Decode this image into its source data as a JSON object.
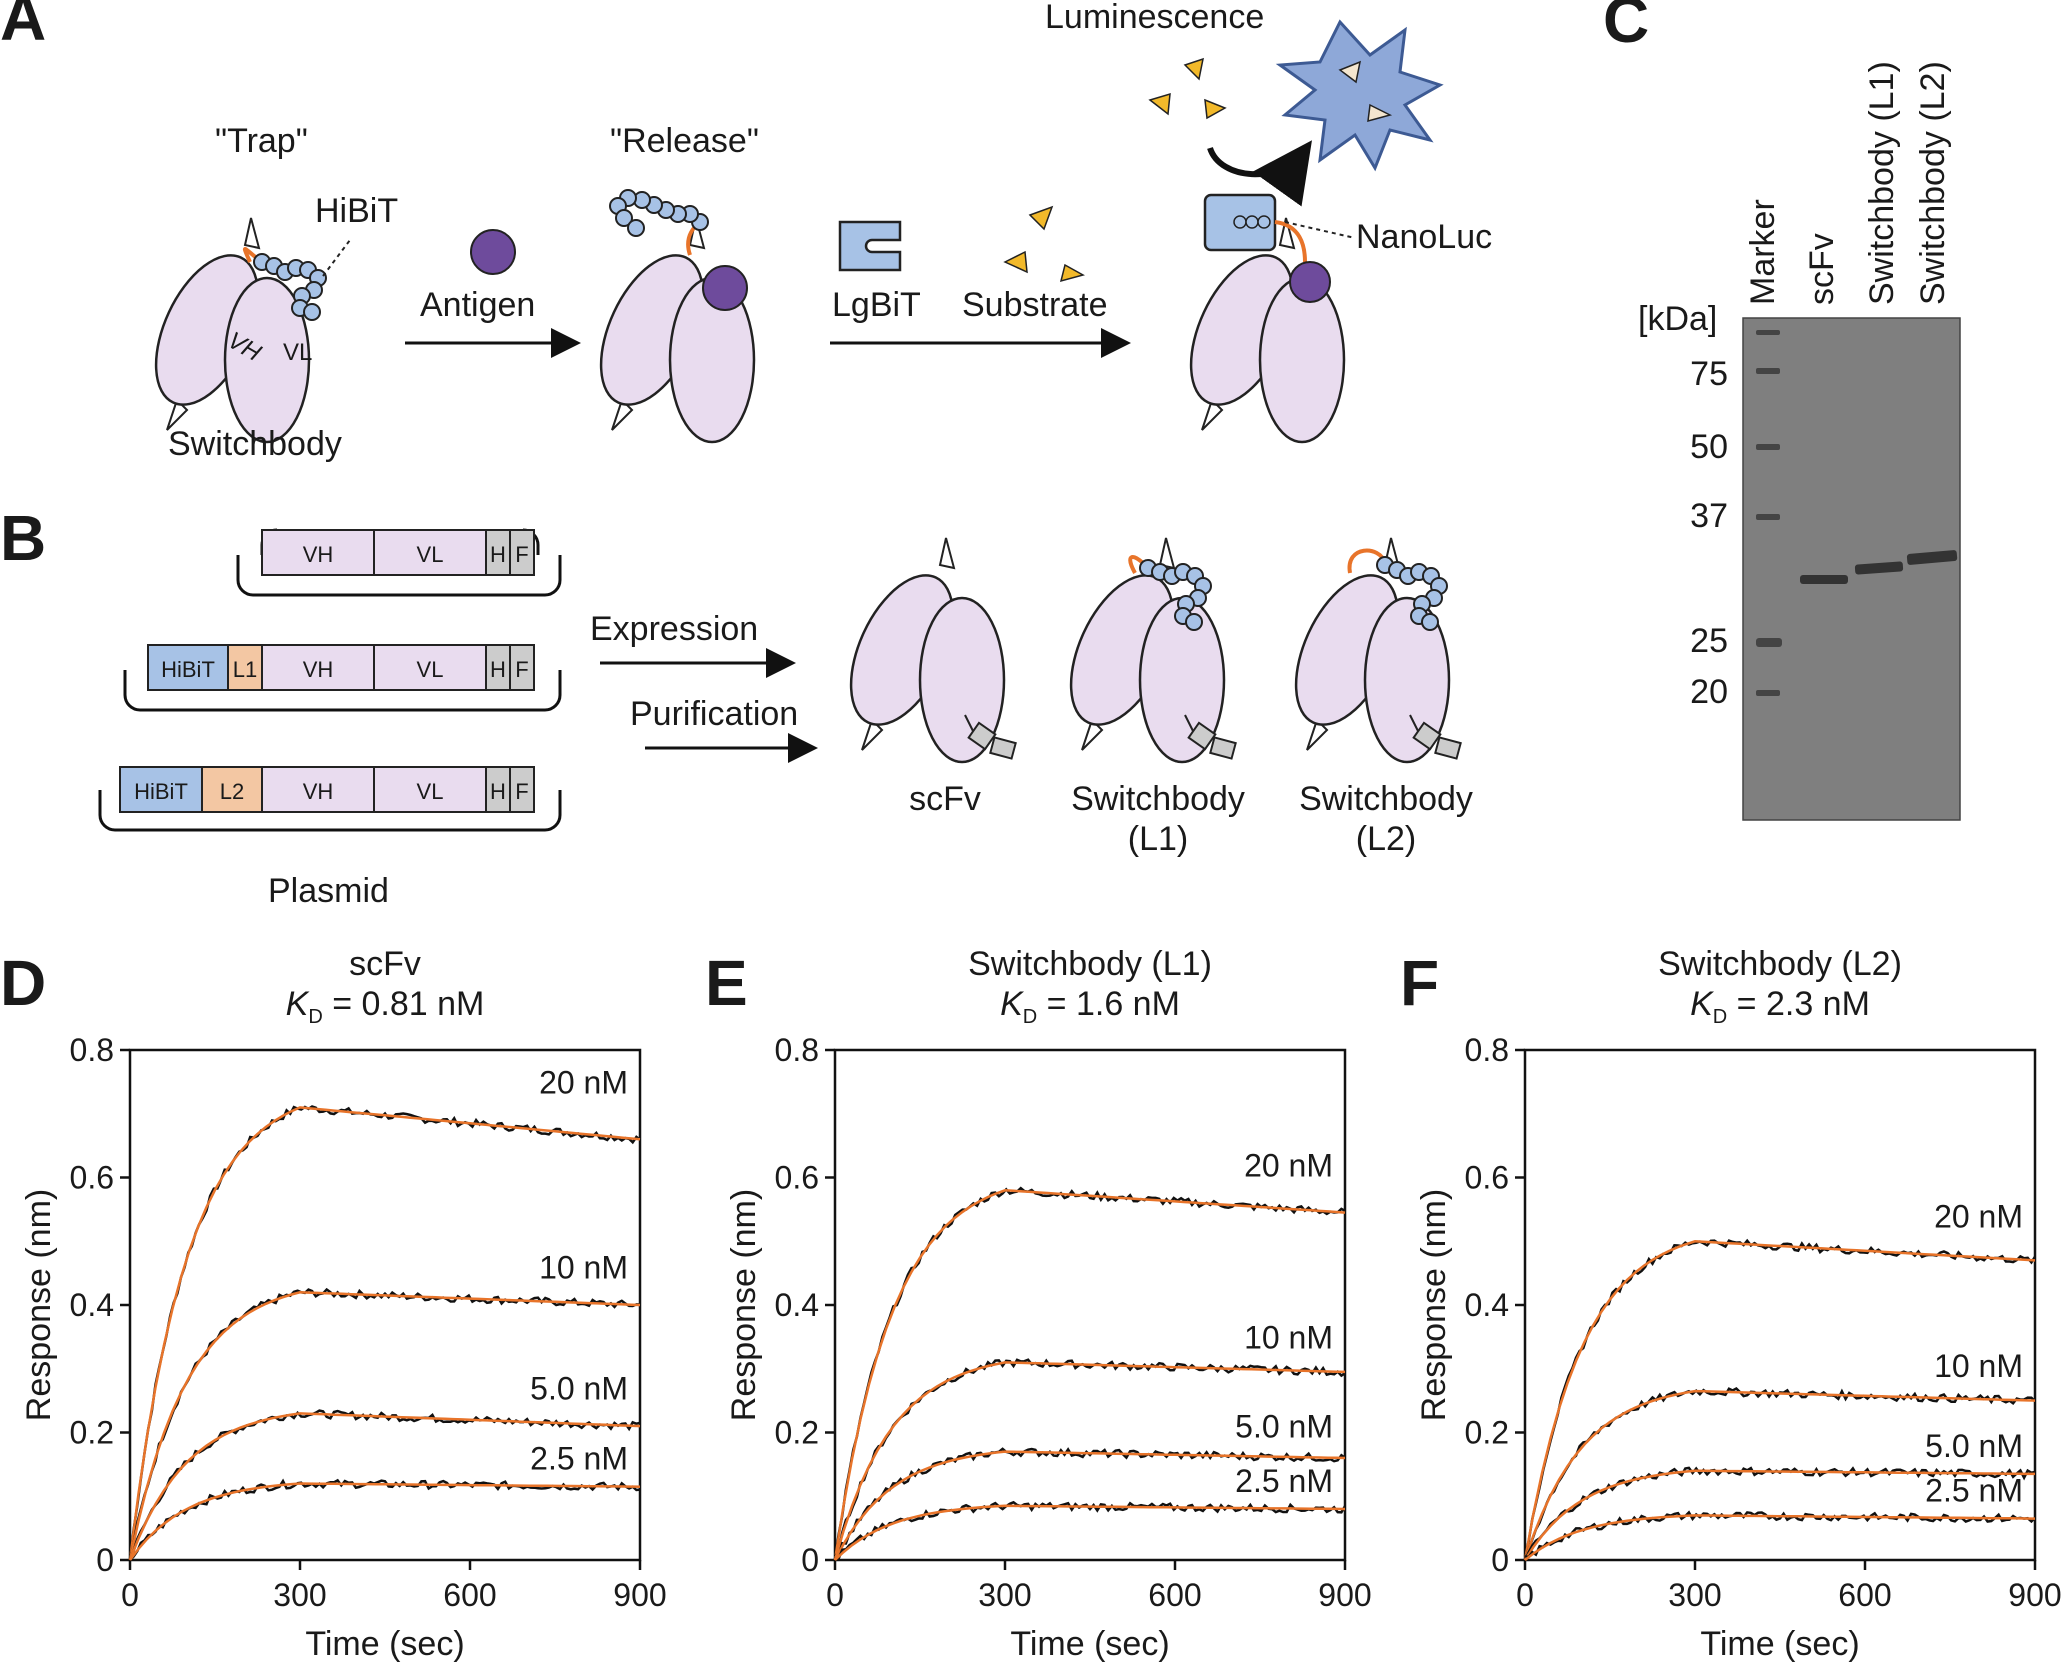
{
  "panel_letters": [
    "A",
    "B",
    "C",
    "D",
    "E",
    "F"
  ],
  "panel_a": {
    "trap": "\"Trap\"",
    "release": "\"Release\"",
    "hibit": "HiBiT",
    "vh": "VH",
    "vl": "VL",
    "switchbody": "Switchbody",
    "antigen": "Antigen",
    "lgbit": "LgBiT",
    "substrate": "Substrate",
    "luminescence": "Luminescence",
    "nanoluc": "NanoLuc"
  },
  "panel_b": {
    "constructs": [
      {
        "segments": [
          "VH",
          "VL",
          "H",
          "F"
        ]
      },
      {
        "segments": [
          "HiBiT",
          "L1",
          "VH",
          "VL",
          "H",
          "F"
        ]
      },
      {
        "segments": [
          "HiBiT",
          "L2",
          "VH",
          "VL",
          "H",
          "F"
        ]
      }
    ],
    "plasmid": "Plasmid",
    "expression": "Expression",
    "purification": "Purification",
    "products": [
      {
        "line1": "scFv",
        "line2": ""
      },
      {
        "line1": "Switchbody",
        "line2": "(L1)"
      },
      {
        "line1": "Switchbody",
        "line2": "(L2)"
      }
    ]
  },
  "panel_c": {
    "lanes": [
      "Marker",
      "scFv",
      "Switchbody (L1)",
      "Switchbody (L2)"
    ],
    "unit": "[kDa]",
    "markers": [
      "75",
      "50",
      "37",
      "25",
      "20"
    ]
  },
  "colors": {
    "domain": "#e9dcef",
    "hibit": "#a7c2e6",
    "linker": "#f3c7a3",
    "tag": "#cccccc",
    "antigen": "#6e4b9c",
    "fit": "#e8742a",
    "data": "#111111",
    "gel": "#7d7d7d",
    "substrate": "#f2b92a"
  },
  "chart_data": [
    {
      "type": "line",
      "title": "scFv",
      "kd_label": "K",
      "kd_sub": "D",
      "kd_value": " = 0.81 nM",
      "xlabel": "Time (sec)",
      "ylabel": "Response (nm)",
      "xlim": [
        0,
        900
      ],
      "ylim": [
        0,
        0.8
      ],
      "xticks": [
        "0",
        "300",
        "600",
        "900"
      ],
      "yticks": [
        "0",
        "0.2",
        "0.4",
        "0.6",
        "0.8"
      ],
      "series": [
        {
          "name": "20 nM",
          "x": [
            0,
            300,
            900
          ],
          "y": [
            0,
            0.71,
            0.66
          ]
        },
        {
          "name": "10 nM",
          "x": [
            0,
            300,
            900
          ],
          "y": [
            0,
            0.42,
            0.4
          ]
        },
        {
          "name": "5.0 nM",
          "x": [
            0,
            300,
            900
          ],
          "y": [
            0,
            0.23,
            0.21
          ]
        },
        {
          "name": "2.5 nM",
          "x": [
            0,
            300,
            900
          ],
          "y": [
            0,
            0.12,
            0.115
          ]
        }
      ]
    },
    {
      "type": "line",
      "title": "Switchbody (L1)",
      "kd_label": "K",
      "kd_sub": "D",
      "kd_value": " = 1.6 nM",
      "xlabel": "Time (sec)",
      "ylabel": "Response (nm)",
      "xlim": [
        0,
        900
      ],
      "ylim": [
        0,
        0.8
      ],
      "xticks": [
        "0",
        "300",
        "600",
        "900"
      ],
      "yticks": [
        "0",
        "0.2",
        "0.4",
        "0.6",
        "0.8"
      ],
      "series": [
        {
          "name": "20 nM",
          "x": [
            0,
            300,
            900
          ],
          "y": [
            0,
            0.58,
            0.545
          ]
        },
        {
          "name": "10 nM",
          "x": [
            0,
            300,
            900
          ],
          "y": [
            0,
            0.31,
            0.295
          ]
        },
        {
          "name": "5.0 nM",
          "x": [
            0,
            300,
            900
          ],
          "y": [
            0,
            0.17,
            0.16
          ]
        },
        {
          "name": "2.5 nM",
          "x": [
            0,
            300,
            900
          ],
          "y": [
            0,
            0.085,
            0.08
          ]
        }
      ]
    },
    {
      "type": "line",
      "title": "Switchbody (L2)",
      "kd_label": "K",
      "kd_sub": "D",
      "kd_value": " = 2.3 nM",
      "xlabel": "Time (sec)",
      "ylabel": "Response (nm)",
      "xlim": [
        0,
        900
      ],
      "ylim": [
        0,
        0.8
      ],
      "xticks": [
        "0",
        "300",
        "600",
        "900"
      ],
      "yticks": [
        "0",
        "0.2",
        "0.4",
        "0.6",
        "0.8"
      ],
      "series": [
        {
          "name": "20 nM",
          "x": [
            0,
            300,
            900
          ],
          "y": [
            0,
            0.5,
            0.47
          ]
        },
        {
          "name": "10 nM",
          "x": [
            0,
            300,
            900
          ],
          "y": [
            0,
            0.265,
            0.25
          ]
        },
        {
          "name": "5.0 nM",
          "x": [
            0,
            300,
            900
          ],
          "y": [
            0,
            0.14,
            0.135
          ]
        },
        {
          "name": "2.5 nM",
          "x": [
            0,
            300,
            900
          ],
          "y": [
            0,
            0.07,
            0.065
          ]
        }
      ]
    }
  ]
}
